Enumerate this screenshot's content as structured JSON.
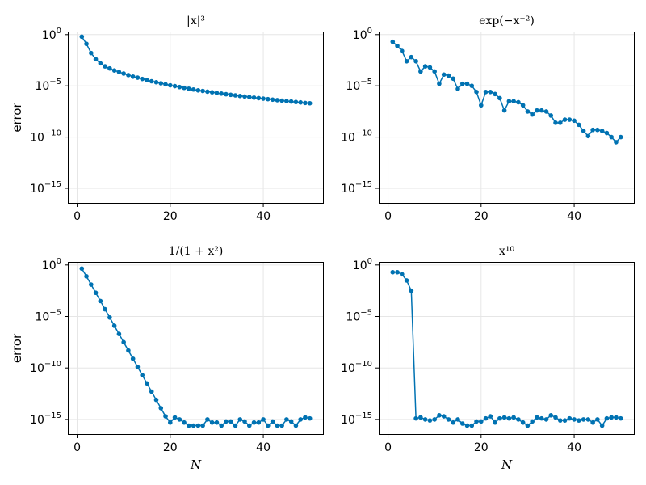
{
  "chart_data": [
    {
      "type": "scatter-line",
      "title": "|x|³",
      "xlabel": "",
      "ylabel": "error",
      "yscale": "log10",
      "xlim": [
        -2,
        53
      ],
      "ylim_exp": [
        -16.5,
        0.3
      ],
      "xticks": [
        0,
        20,
        40
      ],
      "yticks_exp": [
        0,
        -5,
        -10,
        -15
      ],
      "grid": true,
      "color": "#0072b2",
      "x": [
        1,
        2,
        3,
        4,
        5,
        6,
        7,
        8,
        9,
        10,
        11,
        12,
        13,
        14,
        15,
        16,
        17,
        18,
        19,
        20,
        21,
        22,
        23,
        24,
        25,
        26,
        27,
        28,
        29,
        30,
        31,
        32,
        33,
        34,
        35,
        36,
        37,
        38,
        39,
        40,
        41,
        42,
        43,
        44,
        45,
        46,
        47,
        48,
        49,
        50
      ],
      "log10_y": [
        -0.2,
        -0.9,
        -1.8,
        -2.4,
        -2.8,
        -3.1,
        -3.3,
        -3.5,
        -3.65,
        -3.8,
        -3.95,
        -4.1,
        -4.2,
        -4.33,
        -4.45,
        -4.55,
        -4.65,
        -4.75,
        -4.85,
        -4.95,
        -5.03,
        -5.12,
        -5.2,
        -5.28,
        -5.36,
        -5.44,
        -5.5,
        -5.57,
        -5.63,
        -5.7,
        -5.76,
        -5.82,
        -5.88,
        -5.93,
        -5.99,
        -6.04,
        -6.1,
        -6.15,
        -6.2,
        -6.25,
        -6.3,
        -6.35,
        -6.4,
        -6.45,
        -6.49,
        -6.53,
        -6.58,
        -6.62,
        -6.67,
        -6.7
      ]
    },
    {
      "type": "scatter-line",
      "title": "exp(−x⁻²)",
      "xlabel": "",
      "ylabel": "",
      "yscale": "log10",
      "xlim": [
        -2,
        53
      ],
      "ylim_exp": [
        -16.5,
        0.3
      ],
      "xticks": [
        0,
        20,
        40
      ],
      "yticks_exp": [
        0,
        -5,
        -10,
        -15
      ],
      "grid": true,
      "color": "#0072b2",
      "x": [
        1,
        2,
        3,
        4,
        5,
        6,
        7,
        8,
        9,
        10,
        11,
        12,
        13,
        14,
        15,
        16,
        17,
        18,
        19,
        20,
        21,
        22,
        23,
        24,
        25,
        26,
        27,
        28,
        29,
        30,
        31,
        32,
        33,
        34,
        35,
        36,
        37,
        38,
        39,
        40,
        41,
        42,
        43,
        44,
        45,
        46,
        47,
        48,
        49,
        50
      ],
      "log10_y": [
        -0.7,
        -1.1,
        -1.6,
        -2.6,
        -2.2,
        -2.6,
        -3.6,
        -3.1,
        -3.2,
        -3.6,
        -4.8,
        -3.9,
        -4.0,
        -4.3,
        -5.3,
        -4.8,
        -4.8,
        -5.0,
        -5.6,
        -6.9,
        -5.6,
        -5.6,
        -5.8,
        -6.2,
        -7.4,
        -6.5,
        -6.5,
        -6.6,
        -6.9,
        -7.5,
        -7.8,
        -7.4,
        -7.4,
        -7.5,
        -7.9,
        -8.6,
        -8.6,
        -8.3,
        -8.3,
        -8.4,
        -8.8,
        -9.4,
        -9.9,
        -9.3,
        -9.3,
        -9.4,
        -9.6,
        -10.0,
        -10.5,
        -10.0
      ]
    },
    {
      "type": "scatter-line",
      "title": "1/(1 + x²)",
      "xlabel": "N",
      "ylabel": "error",
      "yscale": "log10",
      "xlim": [
        -2,
        53
      ],
      "ylim_exp": [
        -16.5,
        0.3
      ],
      "xticks": [
        0,
        20,
        40
      ],
      "yticks_exp": [
        0,
        -5,
        -10,
        -15
      ],
      "grid": true,
      "color": "#0072b2",
      "x": [
        1,
        2,
        3,
        4,
        5,
        6,
        7,
        8,
        9,
        10,
        11,
        12,
        13,
        14,
        15,
        16,
        17,
        18,
        19,
        20,
        21,
        22,
        23,
        24,
        25,
        26,
        27,
        28,
        29,
        30,
        31,
        32,
        33,
        34,
        35,
        36,
        37,
        38,
        39,
        40,
        41,
        42,
        43,
        44,
        45,
        46,
        47,
        48,
        49,
        50
      ],
      "log10_y": [
        -0.35,
        -1.1,
        -1.9,
        -2.7,
        -3.5,
        -4.3,
        -5.1,
        -5.9,
        -6.7,
        -7.5,
        -8.3,
        -9.1,
        -9.9,
        -10.7,
        -11.5,
        -12.3,
        -13.1,
        -13.9,
        -14.7,
        -15.3,
        -14.8,
        -15.0,
        -15.3,
        -15.6,
        -15.6,
        -15.6,
        -15.6,
        -15.0,
        -15.3,
        -15.3,
        -15.6,
        -15.2,
        -15.2,
        -15.6,
        -15.0,
        -15.2,
        -15.6,
        -15.3,
        -15.3,
        -15.0,
        -15.6,
        -15.2,
        -15.6,
        -15.6,
        -15.0,
        -15.2,
        -15.6,
        -15.0,
        -14.8,
        -14.9
      ]
    },
    {
      "type": "scatter-line",
      "title": "x¹⁰",
      "xlabel": "N",
      "ylabel": "",
      "yscale": "log10",
      "xlim": [
        -2,
        53
      ],
      "ylim_exp": [
        -16.5,
        0.3
      ],
      "xticks": [
        0,
        20,
        40
      ],
      "yticks_exp": [
        0,
        -5,
        -10,
        -15
      ],
      "grid": true,
      "color": "#0072b2",
      "x": [
        1,
        2,
        3,
        4,
        5,
        6,
        7,
        8,
        9,
        10,
        11,
        12,
        13,
        14,
        15,
        16,
        17,
        18,
        19,
        20,
        21,
        22,
        23,
        24,
        25,
        26,
        27,
        28,
        29,
        30,
        31,
        32,
        33,
        34,
        35,
        36,
        37,
        38,
        39,
        40,
        41,
        42,
        43,
        44,
        45,
        46,
        47,
        48,
        49,
        50
      ],
      "log10_y": [
        -0.7,
        -0.7,
        -0.9,
        -1.5,
        -2.5,
        -14.9,
        -14.8,
        -15.0,
        -15.1,
        -15.0,
        -14.6,
        -14.7,
        -15.0,
        -15.3,
        -15.0,
        -15.4,
        -15.6,
        -15.6,
        -15.2,
        -15.2,
        -14.9,
        -14.7,
        -15.3,
        -14.9,
        -14.8,
        -14.9,
        -14.8,
        -15.0,
        -15.3,
        -15.6,
        -15.2,
        -14.8,
        -14.9,
        -15.0,
        -14.6,
        -14.8,
        -15.1,
        -15.1,
        -14.9,
        -15.0,
        -15.1,
        -15.0,
        -15.0,
        -15.3,
        -15.0,
        -15.6,
        -14.9,
        -14.8,
        -14.8,
        -14.9
      ]
    }
  ]
}
